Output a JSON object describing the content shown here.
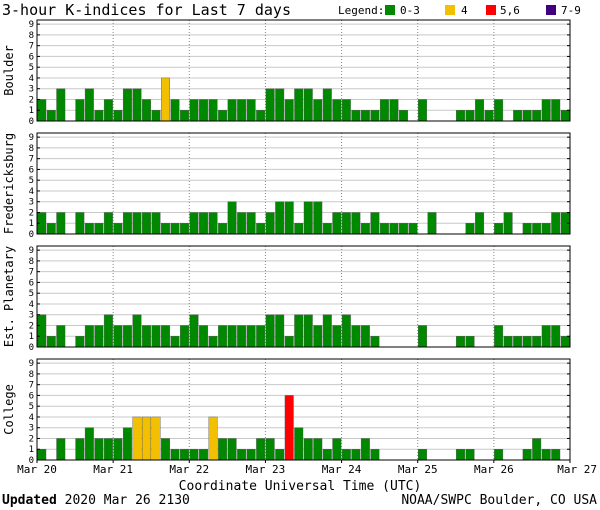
{
  "title": "3-hour K-indices for Last 7 days",
  "legend": {
    "label": "Legend:",
    "items": [
      {
        "label": "0-3",
        "color": "#008800"
      },
      {
        "label": "4",
        "color": "#f2c000"
      },
      {
        "label": "5,6",
        "color": "#ff0000"
      },
      {
        "label": "7-9",
        "color": "#400080"
      }
    ]
  },
  "x_axis_title": "Coordinate Universal Time (UTC)",
  "footer": {
    "updated_label": "Updated",
    "updated_value": "2020 Mar 26 2130",
    "source": "NOAA/SWPC Boulder, CO USA"
  },
  "chart_data": [
    {
      "type": "bar",
      "panel": "Boulder",
      "ylabel": "Boulder",
      "ylim": [
        0,
        9
      ],
      "yticks": [
        0,
        1,
        2,
        3,
        4,
        5,
        6,
        7,
        8,
        9
      ],
      "x_tick_labels": [
        "Mar 20",
        "Mar 21",
        "Mar 22",
        "Mar 23",
        "Mar 24",
        "Mar 25",
        "Mar 26",
        "Mar 27"
      ],
      "values": [
        2,
        1,
        3,
        0,
        2,
        3,
        1,
        2,
        1,
        3,
        3,
        2,
        1,
        4,
        2,
        1,
        2,
        2,
        2,
        1,
        2,
        2,
        2,
        1,
        3,
        3,
        2,
        3,
        3,
        2,
        3,
        2,
        2,
        1,
        1,
        1,
        2,
        2,
        1,
        0,
        2,
        0,
        0,
        0,
        1,
        1,
        2,
        1,
        2,
        0,
        1,
        1,
        1,
        2,
        2,
        1,
        0
      ]
    },
    {
      "type": "bar",
      "panel": "Fredericksburg",
      "ylabel": "Fredericksburg",
      "ylim": [
        0,
        9
      ],
      "yticks": [
        0,
        1,
        2,
        3,
        4,
        5,
        6,
        7,
        8,
        9
      ],
      "x_tick_labels": [
        "Mar 20",
        "Mar 21",
        "Mar 22",
        "Mar 23",
        "Mar 24",
        "Mar 25",
        "Mar 26",
        "Mar 27"
      ],
      "values": [
        2,
        1,
        2,
        0,
        2,
        1,
        1,
        2,
        1,
        2,
        2,
        2,
        2,
        1,
        1,
        1,
        2,
        2,
        2,
        1,
        3,
        2,
        2,
        1,
        2,
        3,
        3,
        1,
        3,
        3,
        1,
        2,
        2,
        2,
        1,
        2,
        1,
        1,
        1,
        1,
        0,
        2,
        0,
        0,
        0,
        1,
        2,
        0,
        1,
        2,
        0,
        1,
        1,
        1,
        2,
        2,
        1
      ]
    },
    {
      "type": "bar",
      "panel": "Est. Planetary",
      "ylabel": "Est. Planetary",
      "ylim": [
        0,
        9
      ],
      "yticks": [
        0,
        1,
        2,
        3,
        4,
        5,
        6,
        7,
        8,
        9
      ],
      "x_tick_labels": [
        "Mar 20",
        "Mar 21",
        "Mar 22",
        "Mar 23",
        "Mar 24",
        "Mar 25",
        "Mar 26",
        "Mar 27"
      ],
      "values": [
        3,
        1,
        2,
        0,
        1,
        2,
        2,
        3,
        2,
        2,
        3,
        2,
        2,
        2,
        1,
        2,
        3,
        2,
        1,
        2,
        2,
        2,
        2,
        2,
        3,
        3,
        1,
        3,
        3,
        2,
        3,
        2,
        3,
        2,
        2,
        1,
        0,
        0,
        0,
        0,
        2,
        0,
        0,
        0,
        1,
        1,
        0,
        0,
        2,
        1,
        1,
        1,
        1,
        2,
        2,
        1,
        0
      ]
    },
    {
      "type": "bar",
      "panel": "College",
      "ylabel": "College",
      "ylim": [
        0,
        9
      ],
      "yticks": [
        0,
        1,
        2,
        3,
        4,
        5,
        6,
        7,
        8,
        9
      ],
      "x_tick_labels": [
        "Mar 20",
        "Mar 21",
        "Mar 22",
        "Mar 23",
        "Mar 24",
        "Mar 25",
        "Mar 26",
        "Mar 27"
      ],
      "values": [
        1,
        0,
        2,
        0,
        2,
        3,
        2,
        2,
        2,
        3,
        4,
        4,
        4,
        2,
        1,
        1,
        1,
        1,
        4,
        2,
        2,
        1,
        1,
        2,
        2,
        1,
        6,
        3,
        2,
        2,
        1,
        2,
        1,
        1,
        2,
        1,
        0,
        0,
        0,
        0,
        1,
        0,
        0,
        0,
        1,
        1,
        0,
        0,
        1,
        0,
        0,
        1,
        2,
        1,
        1,
        0,
        0
      ]
    }
  ]
}
